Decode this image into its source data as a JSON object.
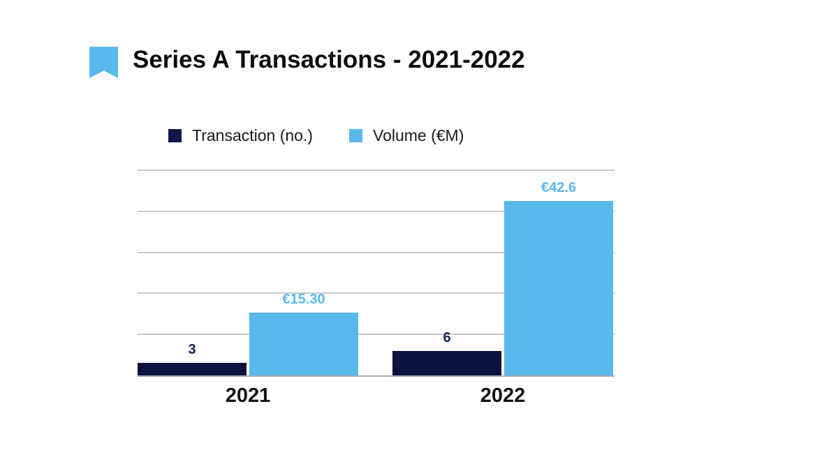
{
  "header": {
    "icon": "bookmark-icon",
    "icon_color": "#5BB8EC",
    "title": "Series A Transactions - 2021-2022"
  },
  "legend": {
    "position": "top",
    "items": [
      {
        "label": "Transaction (no.)",
        "color": "#12174A"
      },
      {
        "label": "Volume (€M)",
        "color": "#5BB8EC"
      }
    ]
  },
  "chart_data": {
    "type": "bar",
    "title": "Series A Transactions - 2021-2022",
    "categories": [
      "2021",
      "2022"
    ],
    "series": [
      {
        "name": "Transaction (no.)",
        "color": "#0D123F",
        "values": [
          3,
          6
        ],
        "data_labels": [
          "3",
          "6"
        ],
        "label_color": "#1B2155"
      },
      {
        "name": "Volume (€M)",
        "color": "#5BB8EC",
        "values": [
          15.3,
          42.6
        ],
        "data_labels": [
          "€15.30",
          "€42.6"
        ],
        "label_color": "#5BB8EC"
      }
    ],
    "xlabel": "",
    "ylabel": "",
    "ylim": [
      0,
      50
    ],
    "gridline_step": 10,
    "grid": true,
    "y_tick_labels_visible": false,
    "legend_position": "top",
    "gridline_color": "#C9CACB",
    "baseline_color": "#ABADB0",
    "background": "#FFFFFF"
  }
}
